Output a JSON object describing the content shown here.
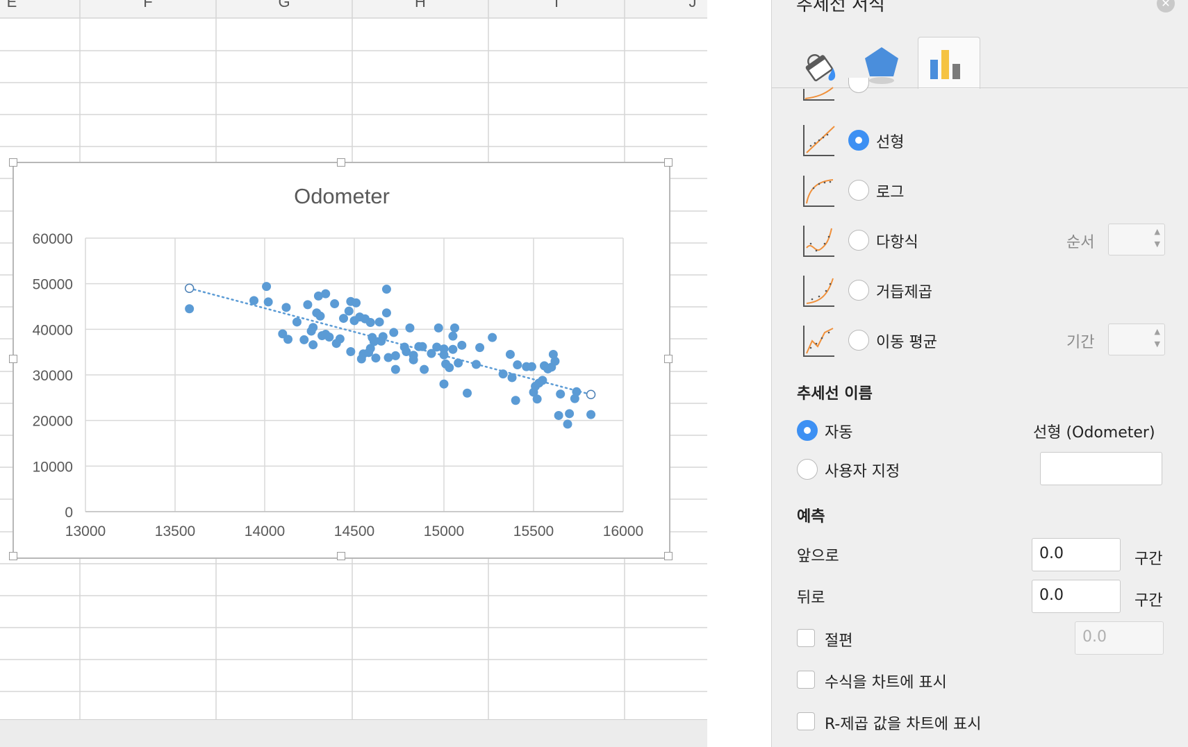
{
  "sheet": {
    "columns": [
      "E",
      "F",
      "G",
      "H",
      "I",
      "J"
    ]
  },
  "chart_data": {
    "type": "scatter",
    "title": "Odometer",
    "xlim": [
      13000,
      16000
    ],
    "ylim": [
      0,
      60000
    ],
    "x_ticks": [
      "13000",
      "13500",
      "14000",
      "14500",
      "15000",
      "15500",
      "16000"
    ],
    "y_ticks": [
      "0",
      "10000",
      "20000",
      "30000",
      "40000",
      "50000",
      "60000"
    ],
    "grid": true,
    "marker_color": "#5b9bd5",
    "trendline": {
      "type": "linear",
      "style": "dotted",
      "from": [
        13580,
        49000
      ],
      "to": [
        15820,
        25700
      ]
    },
    "points": [
      [
        13580,
        44500
      ],
      [
        13940,
        46300
      ],
      [
        14010,
        49400
      ],
      [
        14020,
        46000
      ],
      [
        14100,
        39000
      ],
      [
        14120,
        44800
      ],
      [
        14130,
        37800
      ],
      [
        14180,
        41600
      ],
      [
        14220,
        37700
      ],
      [
        14240,
        45400
      ],
      [
        14260,
        39600
      ],
      [
        14270,
        40400
      ],
      [
        14270,
        36600
      ],
      [
        14290,
        43600
      ],
      [
        14300,
        47300
      ],
      [
        14310,
        42900
      ],
      [
        14320,
        38600
      ],
      [
        14340,
        47800
      ],
      [
        14340,
        38900
      ],
      [
        14360,
        38300
      ],
      [
        14390,
        45600
      ],
      [
        14400,
        36900
      ],
      [
        14420,
        37900
      ],
      [
        14440,
        42400
      ],
      [
        14470,
        44000
      ],
      [
        14480,
        46100
      ],
      [
        14480,
        35100
      ],
      [
        14500,
        41900
      ],
      [
        14510,
        45800
      ],
      [
        14530,
        42700
      ],
      [
        14540,
        33500
      ],
      [
        14550,
        34600
      ],
      [
        14560,
        42300
      ],
      [
        14580,
        34900
      ],
      [
        14590,
        41500
      ],
      [
        14590,
        35800
      ],
      [
        14600,
        38200
      ],
      [
        14610,
        37300
      ],
      [
        14620,
        33700
      ],
      [
        14640,
        41600
      ],
      [
        14650,
        37400
      ],
      [
        14660,
        38400
      ],
      [
        14680,
        43600
      ],
      [
        14680,
        48800
      ],
      [
        14690,
        33800
      ],
      [
        14720,
        39300
      ],
      [
        14730,
        34200
      ],
      [
        14730,
        31200
      ],
      [
        14780,
        36100
      ],
      [
        14790,
        35100
      ],
      [
        14810,
        40300
      ],
      [
        14830,
        34300
      ],
      [
        14830,
        33300
      ],
      [
        14860,
        36200
      ],
      [
        14880,
        36200
      ],
      [
        14890,
        31200
      ],
      [
        14930,
        34700
      ],
      [
        14960,
        36100
      ],
      [
        14970,
        40300
      ],
      [
        15000,
        35700
      ],
      [
        15000,
        28000
      ],
      [
        15000,
        34400
      ],
      [
        15010,
        32400
      ],
      [
        15030,
        31600
      ],
      [
        15050,
        38500
      ],
      [
        15050,
        35600
      ],
      [
        15060,
        40300
      ],
      [
        15080,
        32600
      ],
      [
        15100,
        36500
      ],
      [
        15130,
        26000
      ],
      [
        15180,
        32300
      ],
      [
        15200,
        36000
      ],
      [
        15270,
        38200
      ],
      [
        15330,
        30200
      ],
      [
        15370,
        34500
      ],
      [
        15380,
        29400
      ],
      [
        15400,
        24400
      ],
      [
        15410,
        32200
      ],
      [
        15460,
        31800
      ],
      [
        15490,
        31800
      ],
      [
        15500,
        26200
      ],
      [
        15510,
        27500
      ],
      [
        15520,
        24700
      ],
      [
        15530,
        28200
      ],
      [
        15550,
        28800
      ],
      [
        15560,
        32000
      ],
      [
        15580,
        31300
      ],
      [
        15600,
        31700
      ],
      [
        15610,
        34500
      ],
      [
        15620,
        33000
      ],
      [
        15640,
        21100
      ],
      [
        15650,
        25800
      ],
      [
        15690,
        19200
      ],
      [
        15700,
        21500
      ],
      [
        15730,
        24800
      ],
      [
        15740,
        26300
      ],
      [
        15820,
        21300
      ]
    ]
  },
  "panel": {
    "header_title": "추세선 서식",
    "close_icon": "close-icon",
    "tabs": [
      "fill-line-icon",
      "effects-icon",
      "trendline-options-icon"
    ],
    "options": [
      {
        "label": "선형",
        "selected": true
      },
      {
        "label": "로그",
        "selected": false
      },
      {
        "label": "다항식",
        "selected": false
      },
      {
        "label": "거듭제곱",
        "selected": false
      },
      {
        "label": "이동 평균",
        "selected": false
      }
    ],
    "order_label": "순서",
    "period_label": "기간",
    "name_section": "추세선 이름",
    "name_auto_label": "자동",
    "name_auto_value": "선형  (Odometer)",
    "name_custom_label": "사용자 지정",
    "name_custom_value": "",
    "forecast_section": "예측",
    "forward_label": "앞으로",
    "forward_value": "0.0",
    "backward_label": "뒤로",
    "backward_value": "0.0",
    "unit_label": "구간",
    "intercept_label": "절편",
    "intercept_value": "0.0",
    "show_equation_label": "수식을 차트에 표시",
    "show_r2_label": "R-제곱 값을 차트에 표시"
  }
}
